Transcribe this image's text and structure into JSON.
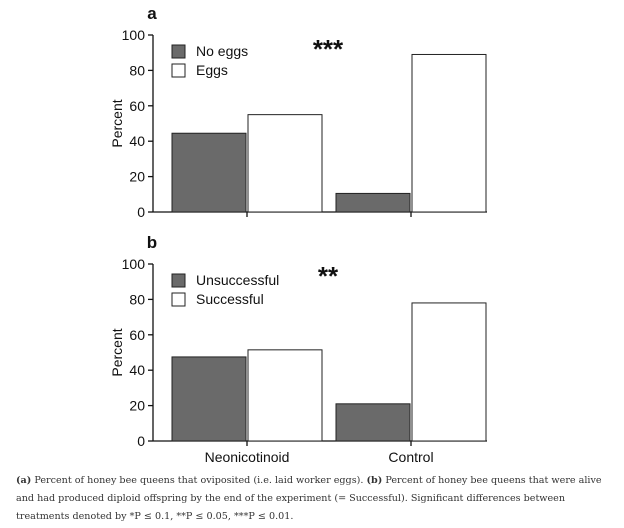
{
  "chart_data": [
    {
      "type": "bar",
      "panel_label": "a",
      "categories": [
        "Neonicotinoid",
        "Control"
      ],
      "series": [
        {
          "name": "No eggs",
          "values": [
            44.5,
            10.5
          ],
          "color": "#6a6a6a"
        },
        {
          "name": "Eggs",
          "values": [
            55,
            89
          ],
          "color": "#ffffff"
        }
      ],
      "ylabel": "Percent",
      "ylim": [
        0,
        100
      ],
      "yticks": [
        "0",
        "20",
        "40",
        "60",
        "80",
        "100"
      ],
      "significance": "***",
      "legend_position": "top-left",
      "show_category_labels": false,
      "grid": false
    },
    {
      "type": "bar",
      "panel_label": "b",
      "categories": [
        "Neonicotinoid",
        "Control"
      ],
      "series": [
        {
          "name": "Unsuccessful",
          "values": [
            47.5,
            21
          ],
          "color": "#6a6a6a"
        },
        {
          "name": "Successful",
          "values": [
            51.5,
            78
          ],
          "color": "#ffffff"
        }
      ],
      "ylabel": "Percent",
      "ylim": [
        0,
        100
      ],
      "yticks": [
        "0",
        "20",
        "40",
        "60",
        "80",
        "100"
      ],
      "significance": "**",
      "legend_position": "top-left",
      "show_category_labels": true,
      "grid": false
    }
  ],
  "caption": {
    "a_label": "(a)",
    "a_text": " Percent of honey bee queens that oviposited (i.e. laid worker eggs). ",
    "b_label": "(b)",
    "b_text": " Percent of honey bee queens that were alive and had produced diploid offspring by the end of the experiment (= Successful). Significant differences between treatments denoted by *P ≤ 0.1, **P ≤ 0.05, ***P ≤ 0.01."
  }
}
